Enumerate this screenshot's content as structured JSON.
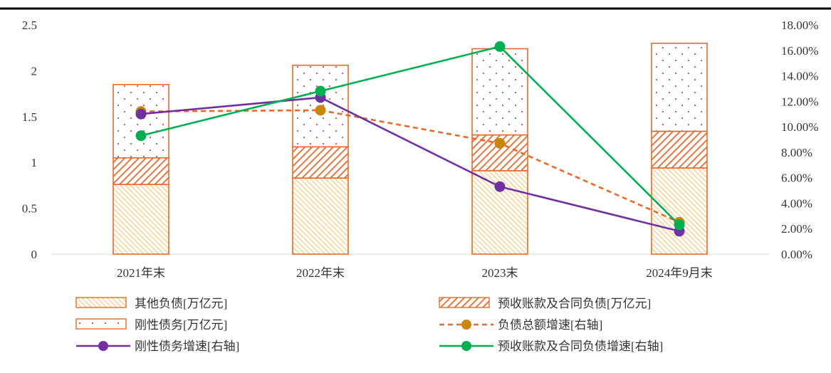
{
  "chart_data": {
    "type": "bar",
    "stacked": true,
    "categories": [
      "2021年末",
      "2022年末",
      "2023末",
      "2024年9月末"
    ],
    "y_left": {
      "ylim": [
        0,
        2.5
      ],
      "ticks": [
        "0",
        "0.5",
        "1",
        "1.5",
        "2",
        "2.5"
      ]
    },
    "y_right": {
      "ylim": [
        0,
        18
      ],
      "ticks": [
        "0.00%",
        "2.00%",
        "4.00%",
        "6.00%",
        "8.00%",
        "10.00%",
        "12.00%",
        "14.00%",
        "16.00%",
        "18.00%"
      ]
    },
    "bar_series": [
      {
        "name": "其他负债[万亿元]",
        "values": [
          0.76,
          0.83,
          0.91,
          0.94
        ],
        "pattern": "diag-fine"
      },
      {
        "name": "预收账款及合同负债[万亿元]",
        "values": [
          0.29,
          0.34,
          0.39,
          0.4
        ],
        "pattern": "diag-bold"
      },
      {
        "name": "刚性债务[万亿元]",
        "values": [
          0.8,
          0.89,
          0.94,
          0.96
        ],
        "pattern": "dots"
      }
    ],
    "line_series": [
      {
        "name": "负债总额增速[右轴]",
        "values": [
          11.2,
          11.3,
          8.7,
          2.5
        ],
        "color": "#e8692a",
        "marker_color": "#c8860b",
        "dashed": true
      },
      {
        "name": "刚性债务增速[右轴]",
        "values": [
          11.0,
          12.3,
          5.3,
          1.8
        ],
        "color": "#7030a0",
        "marker_color": "#7030a0",
        "dashed": false
      },
      {
        "name": "预收账款及合同负债增速[右轴]",
        "values": [
          9.3,
          12.8,
          16.3,
          2.3
        ],
        "color": "#00b050",
        "marker_color": "#00b050",
        "dashed": false
      }
    ],
    "legend_order": [
      0,
      1,
      2,
      3,
      4,
      5
    ],
    "legend_position": "bottom",
    "grid": false,
    "colors": {
      "bar_stroke": "#e8692a",
      "bar_fill": "#f4a53c",
      "dot": "#c0504d",
      "top_rule": "#000000"
    }
  }
}
